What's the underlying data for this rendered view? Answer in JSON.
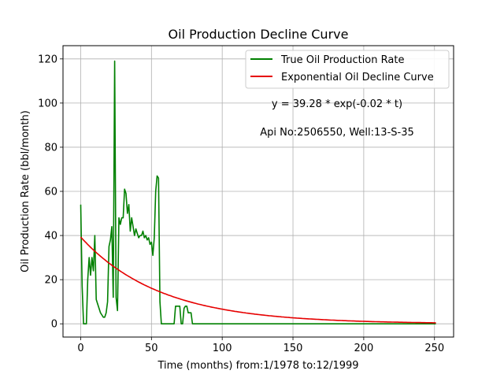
{
  "chart_data": {
    "type": "line",
    "title": "Oil Production Decline Curve",
    "xlabel": "Time (months) from:1/1978 to:12/1999",
    "ylabel": "Oil Production Rate (bbl/month)",
    "xlim": [
      -12.5,
      263.5
    ],
    "ylim": [
      -6,
      126
    ],
    "xticks": [
      0,
      50,
      100,
      150,
      200,
      250
    ],
    "yticks": [
      0,
      20,
      40,
      60,
      80,
      100,
      120
    ],
    "grid": true,
    "legend_position": "top-right",
    "annotations": [
      "y = 39.28 * exp(-0.02 * t)",
      "Api No:2506550, Well:13-S-35"
    ],
    "series": [
      {
        "name": "True Oil Production Rate",
        "color": "#008000",
        "x": [
          0,
          1,
          2,
          3,
          4,
          5,
          6,
          7,
          8,
          9,
          10,
          11,
          12,
          13,
          14,
          15,
          16,
          17,
          18,
          19,
          20,
          21,
          22,
          23,
          24,
          25,
          26,
          27,
          28,
          29,
          30,
          31,
          32,
          33,
          34,
          35,
          36,
          37,
          38,
          39,
          40,
          41,
          42,
          43,
          44,
          45,
          46,
          47,
          48,
          49,
          50,
          51,
          52,
          53,
          54,
          55,
          56,
          57,
          58,
          59,
          60,
          61,
          62,
          63,
          64,
          65,
          66,
          67,
          68,
          69,
          70,
          71,
          72,
          73,
          74,
          75,
          76,
          77,
          78,
          79,
          80,
          81,
          251
        ],
        "values": [
          54,
          17,
          0,
          0,
          0,
          20,
          30,
          22,
          30,
          24,
          40,
          11,
          9,
          7,
          5,
          4,
          3,
          3,
          5,
          10,
          35,
          38,
          44,
          12,
          119,
          12,
          6,
          48,
          45,
          48,
          48,
          61,
          59,
          50,
          54,
          42,
          48,
          44,
          40,
          43,
          41,
          39,
          40,
          40,
          42,
          39,
          40,
          38,
          39,
          36,
          37,
          31,
          39,
          60,
          67,
          66,
          10,
          0,
          0,
          0,
          0,
          0,
          0,
          0,
          0,
          0,
          0,
          8,
          8,
          8,
          8,
          0,
          0,
          7,
          8,
          8,
          5,
          5,
          5,
          0,
          0,
          0,
          0
        ]
      },
      {
        "name": "Exponential Oil Decline Curve",
        "color": "#e60000",
        "equation": "y = 39.28 * exp(-0.02 * t)",
        "a": 39.28,
        "b": 0.0178,
        "x_range": [
          0,
          251
        ]
      }
    ]
  }
}
